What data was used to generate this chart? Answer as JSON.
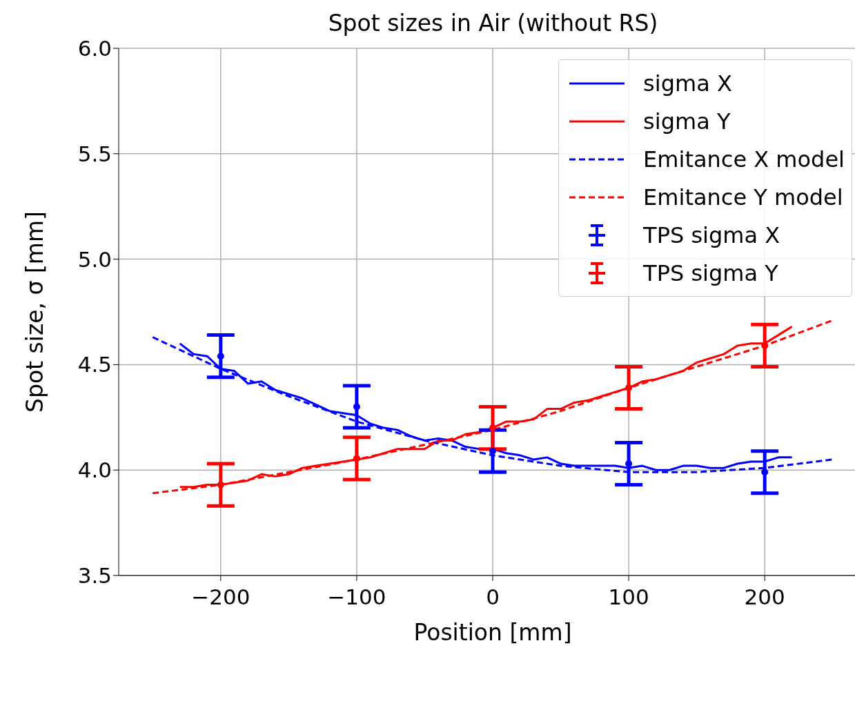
{
  "chart_data": {
    "type": "line",
    "title": "Spot sizes in Air (without RS)",
    "xlabel": "Position [mm]",
    "ylabel": "Spot size, σ [mm]",
    "xlim": [
      -275,
      275
    ],
    "xticks": [
      {
        "value": -200,
        "label": "−200"
      },
      {
        "value": -100,
        "label": "−100"
      },
      0,
      100,
      200
    ],
    "ylim": [
      3.5,
      6.0
    ],
    "yticks": [
      {
        "value": 3.5,
        "label": "3.5"
      },
      {
        "value": 4,
        "label": "4.0"
      },
      {
        "value": 4.5,
        "label": "4.5"
      },
      {
        "value": 5,
        "label": "5.0"
      },
      {
        "value": 5.5,
        "label": "5.5"
      },
      {
        "value": 6,
        "label": "6.0"
      }
    ],
    "grid": true,
    "legend": "top right",
    "series": [
      {
        "name": "sigma X",
        "color": "#0000ff",
        "line_style": "solid",
        "x": [
          -230,
          -220,
          -210,
          -200,
          -190,
          -180,
          -170,
          -160,
          -150,
          -140,
          -130,
          -120,
          -110,
          -100,
          -90,
          -80,
          -70,
          -60,
          -50,
          -40,
          -30,
          -20,
          -10,
          0,
          10,
          20,
          30,
          40,
          50,
          60,
          70,
          80,
          90,
          100,
          110,
          120,
          130,
          140,
          150,
          160,
          170,
          180,
          190,
          200,
          210,
          220
        ],
        "values": [
          4.6,
          4.55,
          4.54,
          4.48,
          4.47,
          4.41,
          4.42,
          4.38,
          4.36,
          4.34,
          4.31,
          4.28,
          4.27,
          4.26,
          4.22,
          4.2,
          4.19,
          4.16,
          4.14,
          4.15,
          4.14,
          4.11,
          4.1,
          4.1,
          4.08,
          4.07,
          4.05,
          4.06,
          4.03,
          4.02,
          4.02,
          4.02,
          4.02,
          4.01,
          4.02,
          4,
          4,
          4.02,
          4.02,
          4.01,
          4.01,
          4.03,
          4.04,
          4.04,
          4.06,
          4.06
        ]
      },
      {
        "name": "sigma Y",
        "color": "#ff0000",
        "line_style": "solid",
        "x": [
          -230,
          -220,
          -210,
          -200,
          -190,
          -180,
          -170,
          -160,
          -150,
          -140,
          -130,
          -120,
          -110,
          -100,
          -90,
          -80,
          -70,
          -60,
          -50,
          -40,
          -30,
          -20,
          -10,
          0,
          10,
          20,
          30,
          40,
          50,
          60,
          70,
          80,
          90,
          100,
          110,
          120,
          130,
          140,
          150,
          160,
          170,
          180,
          190,
          200,
          210,
          220
        ],
        "values": [
          3.92,
          3.92,
          3.93,
          3.93,
          3.94,
          3.95,
          3.98,
          3.97,
          3.98,
          4.01,
          4.02,
          4.03,
          4.04,
          4.05,
          4.06,
          4.08,
          4.1,
          4.1,
          4.1,
          4.14,
          4.14,
          4.17,
          4.18,
          4.2,
          4.23,
          4.23,
          4.24,
          4.29,
          4.29,
          4.32,
          4.33,
          4.35,
          4.37,
          4.39,
          4.42,
          4.43,
          4.45,
          4.47,
          4.51,
          4.53,
          4.55,
          4.59,
          4.6,
          4.6,
          4.64,
          4.68
        ]
      },
      {
        "name": "Emitance X model",
        "color": "#0000ff",
        "line_style": "dashed",
        "x": [
          -250,
          -200,
          -150,
          -100,
          -50,
          0,
          50,
          100,
          150,
          200,
          250
        ],
        "values": [
          4.63,
          4.48,
          4.35,
          4.23,
          4.14,
          4.07,
          4.02,
          3.99,
          3.99,
          4.01,
          4.05
        ]
      },
      {
        "name": "Emitance Y model",
        "color": "#ff0000",
        "line_style": "dashed",
        "x": [
          -250,
          -200,
          -150,
          -100,
          -50,
          0,
          50,
          100,
          150,
          200,
          250
        ],
        "values": [
          3.89,
          3.93,
          3.99,
          4.05,
          4.12,
          4.19,
          4.28,
          4.39,
          4.49,
          4.59,
          4.71
        ]
      },
      {
        "name": "TPS sigma X",
        "type": "scatter",
        "color": "#0000ff",
        "x": [
          -200,
          -100,
          0,
          100,
          200
        ],
        "values": [
          4.54,
          4.3,
          4.09,
          4.03,
          3.99
        ],
        "errors": [
          0.1,
          0.1,
          0.1,
          0.1,
          0.1
        ]
      },
      {
        "name": "TPS sigma Y",
        "type": "scatter",
        "color": "#ff0000",
        "x": [
          -200,
          -100,
          0,
          100,
          200
        ],
        "values": [
          3.93,
          4.055,
          4.2,
          4.39,
          4.59
        ],
        "errors": [
          0.1,
          0.1,
          0.1,
          0.1,
          0.1
        ]
      }
    ]
  }
}
